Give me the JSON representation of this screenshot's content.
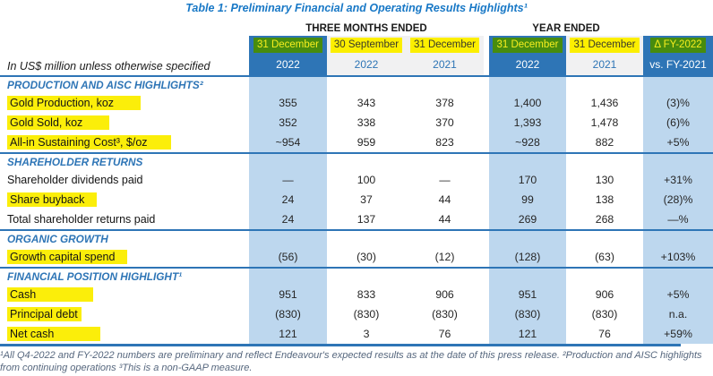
{
  "title": "Table 1: Preliminary Financial and Operating Results Highlights¹",
  "units_note": "In US$ million unless otherwise specified",
  "column_groups": [
    {
      "label": "THREE MONTHS ENDED"
    },
    {
      "label": "YEAR ENDED"
    }
  ],
  "columns": [
    {
      "date": "31 December",
      "year": "2022"
    },
    {
      "date": "30 September",
      "year": "2022"
    },
    {
      "date": "31 December",
      "year": "2021"
    },
    {
      "date": "31 December",
      "year": "2022"
    },
    {
      "date": "31 December",
      "year": "2021"
    },
    {
      "date": "Δ FY-2022",
      "year": "vs. FY-2021"
    }
  ],
  "sections": [
    {
      "heading": "PRODUCTION AND AISC HIGHLIGHTS²",
      "rule_after": true,
      "rows": [
        {
          "label": "Gold Production, koz",
          "highlighted": true,
          "hl_pad": 30,
          "values": [
            "355",
            "343",
            "378",
            "1,400",
            "1,436",
            "(3)%"
          ]
        },
        {
          "label": "Gold Sold, koz",
          "highlighted": true,
          "hl_pad": 30,
          "values": [
            "352",
            "338",
            "370",
            "1,393",
            "1,478",
            "(6)%"
          ]
        },
        {
          "label": "All-in Sustaining Cost³, $/oz",
          "highlighted": true,
          "hl_pad": 26,
          "values": [
            "~954",
            "959",
            "823",
            "~928",
            "882",
            "+5%"
          ]
        }
      ]
    },
    {
      "heading": "SHAREHOLDER RETURNS",
      "rule_after": true,
      "rows": [
        {
          "label": "Shareholder dividends paid",
          "highlighted": false,
          "values": [
            "—",
            "100",
            "—",
            "170",
            "130",
            "+31%"
          ]
        },
        {
          "label": "Share buyback",
          "highlighted": true,
          "hl_pad": 14,
          "values": [
            "24",
            "37",
            "44",
            "99",
            "138",
            "(28)%"
          ]
        },
        {
          "label": "Total shareholder returns paid",
          "highlighted": false,
          "values": [
            "24",
            "137",
            "44",
            "269",
            "268",
            "—%"
          ]
        }
      ]
    },
    {
      "heading": "ORGANIC GROWTH",
      "rule_after": true,
      "rows": [
        {
          "label": "Growth capital spend",
          "highlighted": true,
          "hl_pad": 14,
          "values": [
            "(56)",
            "(30)",
            "(12)",
            "(128)",
            "(63)",
            "+103%"
          ]
        }
      ]
    },
    {
      "heading": "FINANCIAL POSITION HIGHLIGHT¹",
      "rule_after": false,
      "rows": [
        {
          "label": "Cash",
          "highlighted": true,
          "hl_pad": 64,
          "values": [
            "951",
            "833",
            "906",
            "951",
            "906",
            "+5%"
          ]
        },
        {
          "label": "Principal debt",
          "highlighted": true,
          "hl_pad": 4,
          "values": [
            "(830)",
            "(830)",
            "(830)",
            "(830)",
            "(830)",
            "n.a."
          ]
        },
        {
          "label": "Net cash",
          "highlighted": true,
          "hl_pad": 52,
          "values": [
            "121",
            "3",
            "76",
            "121",
            "76",
            "+59%"
          ]
        }
      ]
    }
  ],
  "footnote": "¹All Q4-2022 and FY-2022 numbers are preliminary and reflect Endeavour's expected results as at the date of this press release. ²Production and AISC highlights from continuing operations ³This is a non-GAAP measure.",
  "colors": {
    "header_blue": "#2E75B6",
    "shaded_column_blue": "#BDD7EE",
    "highlight_yellow": "#FBEE0A",
    "highlight_green": "#478C0E",
    "title_blue": "#1878C6",
    "footnote_blue_gray": "#56677E"
  }
}
